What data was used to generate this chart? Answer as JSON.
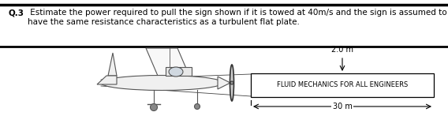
{
  "title_bold": "Q.3",
  "title_text": " Estimate the power required to pull the sign shown if it is towed at 40m/s and the sign is assumed to\nhave the same resistance characteristics as a turbulent flat plate.",
  "sign_text": "FLUID MECHANICS FOR ALL ENGINEERS",
  "dim_height": "2.0 m",
  "dim_width": "30 m",
  "bg_color": "#ffffff",
  "text_color": "#000000",
  "fig_width": 5.68,
  "fig_height": 1.61,
  "dpi": 100
}
